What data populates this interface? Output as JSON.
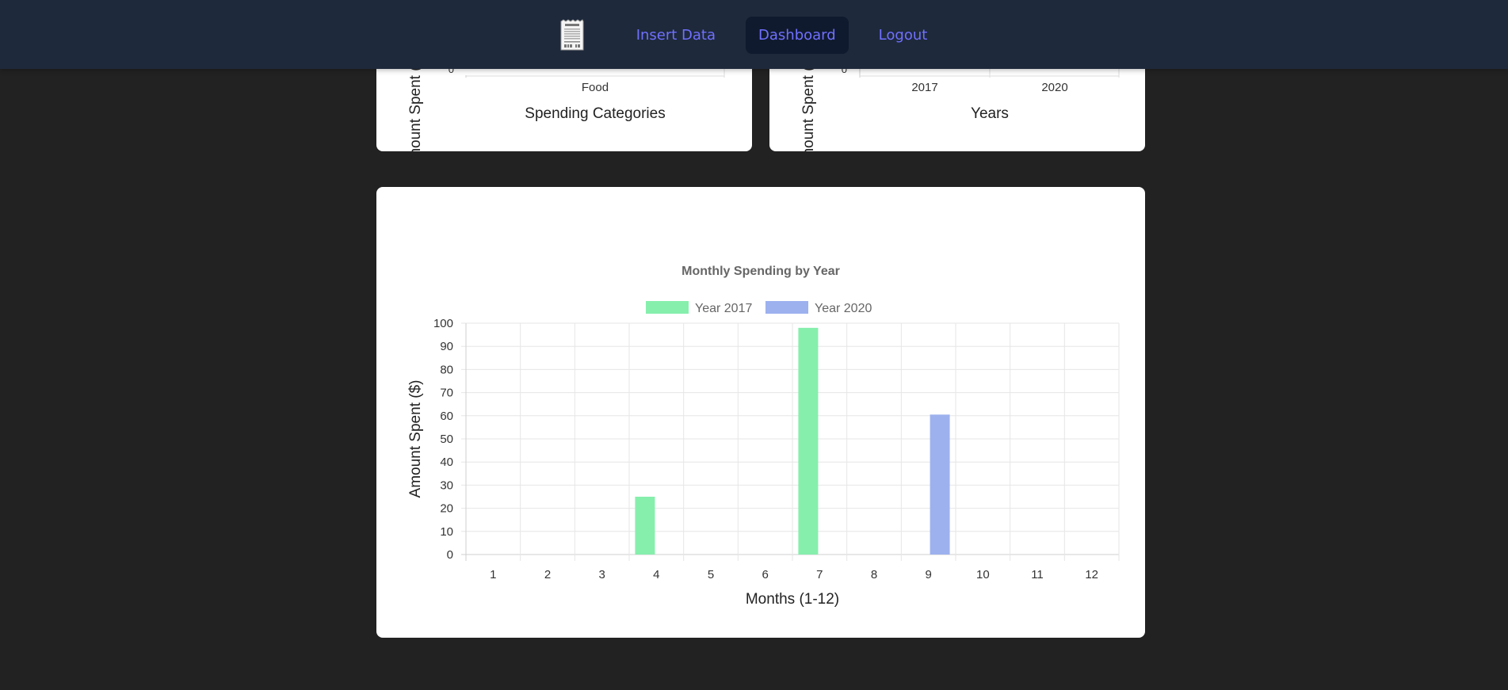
{
  "nav": {
    "logo_icon": "receipt-icon",
    "links": [
      {
        "label": "Insert Data",
        "active": false
      },
      {
        "label": "Dashboard",
        "active": true
      },
      {
        "label": "Logout",
        "active": false
      }
    ],
    "colors": {
      "bar": "#1e293b",
      "link": "#7070ff",
      "active_bg": "#101a2e"
    }
  },
  "chart_data": [
    {
      "type": "bar",
      "title": "",
      "xlabel": "Spending Categories",
      "ylabel": "Amount Spent ($)",
      "categories": [
        "Food"
      ],
      "visible_y_ticks": [
        "0"
      ],
      "partially_visible": true
    },
    {
      "type": "bar",
      "title": "",
      "xlabel": "Years",
      "ylabel": "Amount Spent ($)",
      "categories": [
        "2017",
        "2020"
      ],
      "visible_y_ticks": [
        "0"
      ],
      "partially_visible": true
    },
    {
      "type": "bar",
      "title": "Monthly Spending by Year",
      "xlabel": "Months (1-12)",
      "ylabel": "Amount Spent ($)",
      "ylim": [
        0,
        100
      ],
      "yticks": [
        "0",
        "10",
        "20",
        "30",
        "40",
        "50",
        "60",
        "70",
        "80",
        "90",
        "100"
      ],
      "categories": [
        "1",
        "2",
        "3",
        "4",
        "5",
        "6",
        "7",
        "8",
        "9",
        "10",
        "11",
        "12"
      ],
      "legend": "top",
      "grid": true,
      "series": [
        {
          "name": "Year 2017",
          "color": "#86efac",
          "values": [
            0,
            0,
            0,
            25,
            0,
            0,
            98,
            0,
            0,
            0,
            0,
            0
          ]
        },
        {
          "name": "Year 2020",
          "color": "#9db1ef",
          "values": [
            0,
            0,
            0,
            0,
            0,
            0,
            0,
            0,
            60.5,
            0,
            0,
            0
          ]
        }
      ]
    }
  ]
}
